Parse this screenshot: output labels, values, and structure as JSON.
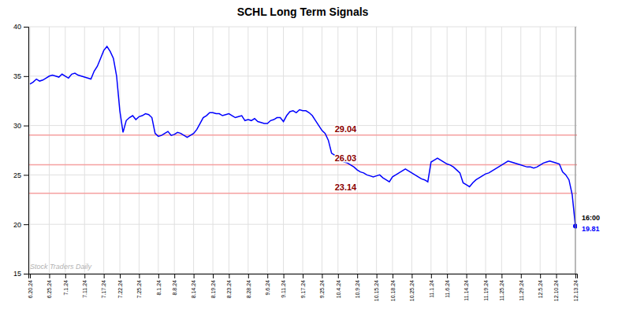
{
  "chart_data": {
    "type": "line",
    "title": "SCHL Long Term Signals",
    "watermark": "Stock Traders Daily",
    "categories": [
      "6.20.24",
      null,
      null,
      null,
      null,
      null,
      "6.25.24",
      null,
      null,
      null,
      null,
      "7.1.24",
      null,
      null,
      null,
      null,
      null,
      "7.11.24",
      null,
      null,
      null,
      null,
      null,
      "7.17.24",
      null,
      null,
      null,
      null,
      "7.22.24",
      null,
      null,
      null,
      null,
      null,
      "7.25.24",
      null,
      null,
      null,
      null,
      null,
      "8.1.24",
      null,
      null,
      null,
      null,
      "8.8.24",
      null,
      null,
      null,
      null,
      null,
      "8.14.24",
      null,
      null,
      null,
      null,
      null,
      "8.19.24",
      null,
      null,
      null,
      null,
      "8.23.24",
      null,
      null,
      null,
      null,
      null,
      "8.28.24",
      null,
      null,
      null,
      null,
      null,
      "9.6.24",
      null,
      null,
      null,
      null,
      "9.11.24",
      null,
      null,
      null,
      null,
      null,
      "9.17.24",
      null,
      null,
      null,
      null,
      null,
      "9.25.24",
      null,
      null,
      null,
      null,
      "10.4.24",
      null,
      null,
      null,
      null,
      null,
      "10.9.24",
      null,
      null,
      null,
      null,
      null,
      "10.15.24",
      null,
      null,
      null,
      null,
      "10.18.24",
      null,
      null,
      null,
      null,
      null,
      "10.25.24",
      null,
      null,
      null,
      null,
      null,
      "11.1.24",
      null,
      null,
      null,
      null,
      "11.6.24",
      null,
      null,
      null,
      null,
      null,
      "11.14.24",
      null,
      null,
      null,
      null,
      null,
      "11.19.24",
      null,
      null,
      null,
      null,
      "11.25.24",
      null,
      null,
      null,
      null,
      null,
      "11.29.24",
      null,
      null,
      null,
      null,
      null,
      "12.5.24",
      null,
      null,
      null,
      null,
      "12.10.24",
      null,
      null,
      null,
      null,
      null,
      "12.13.24"
    ],
    "series": [
      {
        "color": "blue",
        "values": [
          34.2,
          34.4,
          34.7,
          34.5,
          34.6,
          34.8,
          35.0,
          35.1,
          35.0,
          34.9,
          35.2,
          35.0,
          34.8,
          35.2,
          35.3,
          35.1,
          35.0,
          34.9,
          34.8,
          34.7,
          35.5,
          36.0,
          36.8,
          37.6,
          38.0,
          37.5,
          36.8,
          35.0,
          31.5,
          29.3,
          30.5,
          30.8,
          31.0,
          30.6,
          30.9,
          31.0,
          31.2,
          31.1,
          30.8,
          29.2,
          28.9,
          29.0,
          29.2,
          29.4,
          29.0,
          29.1,
          29.3,
          29.2,
          29.0,
          28.8,
          29.0,
          29.2,
          29.6,
          30.2,
          30.8,
          31.0,
          31.3,
          31.3,
          31.2,
          31.2,
          31.0,
          31.1,
          31.2,
          31.0,
          30.8,
          30.9,
          31.0,
          30.5,
          30.6,
          30.5,
          30.7,
          30.4,
          30.3,
          30.2,
          30.2,
          30.5,
          30.6,
          30.8,
          30.8,
          30.4,
          31.0,
          31.4,
          31.5,
          31.3,
          31.6,
          31.5,
          31.5,
          31.3,
          31.0,
          30.5,
          30.0,
          29.5,
          29.2,
          28.5,
          27.2,
          27.0,
          26.8,
          26.5,
          26.3,
          26.2,
          26.0,
          25.8,
          25.5,
          25.3,
          25.2,
          25.0,
          24.9,
          24.8,
          24.9,
          25.0,
          24.7,
          24.5,
          24.3,
          24.8,
          25.0,
          25.2,
          25.4,
          25.6,
          25.4,
          25.2,
          25.0,
          24.8,
          24.6,
          24.5,
          24.3,
          26.3,
          26.5,
          26.7,
          26.5,
          26.3,
          26.1,
          26.0,
          25.8,
          25.5,
          25.2,
          24.2,
          24.0,
          23.8,
          24.2,
          24.5,
          24.7,
          24.9,
          25.1,
          25.2,
          25.4,
          25.6,
          25.8,
          26.0,
          26.2,
          26.4,
          26.3,
          26.2,
          26.1,
          26.0,
          25.9,
          25.8,
          25.8,
          25.7,
          25.8,
          26.0,
          26.2,
          26.3,
          26.4,
          26.3,
          26.2,
          26.1,
          25.3,
          25.0,
          24.5,
          23.0,
          19.81
        ]
      }
    ],
    "reference_lines": {
      "values": [
        29.04,
        26.03,
        23.14
      ],
      "labels": [
        "29.04",
        "26.03",
        "23.14"
      ],
      "color": "#f5a0a0"
    },
    "last_point_labels": [
      "16:00",
      "19.81"
    ],
    "ylim": [
      15,
      40
    ],
    "yticks": [
      15,
      20,
      25,
      30,
      35,
      40
    ],
    "grid": true
  }
}
